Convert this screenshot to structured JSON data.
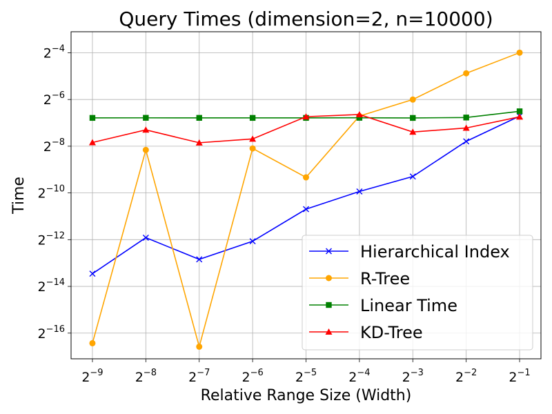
{
  "chart_data": {
    "type": "line",
    "title": "Query Times (dimension=2, n=10000)",
    "xlabel": "Relative Range Size (Width)",
    "ylabel": "Time",
    "x_scale": "log2",
    "y_scale": "log2",
    "x": [
      0.001953125,
      0.00390625,
      0.0078125,
      0.015625,
      0.03125,
      0.0625,
      0.125,
      0.25,
      0.5
    ],
    "x_ticks": [
      {
        "base": "2",
        "exp": "−9",
        "log2": -9
      },
      {
        "base": "2",
        "exp": "−8",
        "log2": -8
      },
      {
        "base": "2",
        "exp": "−7",
        "log2": -7
      },
      {
        "base": "2",
        "exp": "−6",
        "log2": -6
      },
      {
        "base": "2",
        "exp": "−5",
        "log2": -5
      },
      {
        "base": "2",
        "exp": "−4",
        "log2": -4
      },
      {
        "base": "2",
        "exp": "−3",
        "log2": -3
      },
      {
        "base": "2",
        "exp": "−2",
        "log2": -2
      },
      {
        "base": "2",
        "exp": "−1",
        "log2": -1
      }
    ],
    "y_ticks": [
      {
        "base": "2",
        "exp": "−4",
        "log2": -4
      },
      {
        "base": "2",
        "exp": "−6",
        "log2": -6
      },
      {
        "base": "2",
        "exp": "−8",
        "log2": -8
      },
      {
        "base": "2",
        "exp": "−10",
        "log2": -10
      },
      {
        "base": "2",
        "exp": "−12",
        "log2": -12
      },
      {
        "base": "2",
        "exp": "−14",
        "log2": -14
      },
      {
        "base": "2",
        "exp": "−16",
        "log2": -16
      }
    ],
    "xlim_log2": [
      -9.4,
      -0.6
    ],
    "ylim_log2": [
      -17.1,
      -3.1
    ],
    "grid": true,
    "legend_position": "lower-right",
    "series": [
      {
        "name": "Hierarchical Index",
        "color": "#0000ff",
        "marker": "x",
        "values": [
          8.89e-05,
          0.000259,
          0.000136,
          0.000233,
          0.000603,
          0.00102,
          0.00159,
          0.00451,
          0.00955
        ]
      },
      {
        "name": "R-Tree",
        "color": "#ffa500",
        "marker": "circle",
        "values": [
          1.13e-05,
          0.0035,
          1.02e-05,
          0.00366,
          0.00155,
          0.00955,
          0.0156,
          0.034,
          0.0627
        ]
      },
      {
        "name": "Linear Time",
        "color": "#008000",
        "marker": "square",
        "values": [
          0.00905,
          0.00907,
          0.00906,
          0.00905,
          0.00905,
          0.00908,
          0.00904,
          0.00915,
          0.011
        ]
      },
      {
        "name": "KD-Tree",
        "color": "#ff0000",
        "marker": "triangle",
        "values": [
          0.00436,
          0.00634,
          0.00433,
          0.00485,
          0.00938,
          0.01,
          0.00596,
          0.00671,
          0.00934
        ]
      }
    ]
  }
}
